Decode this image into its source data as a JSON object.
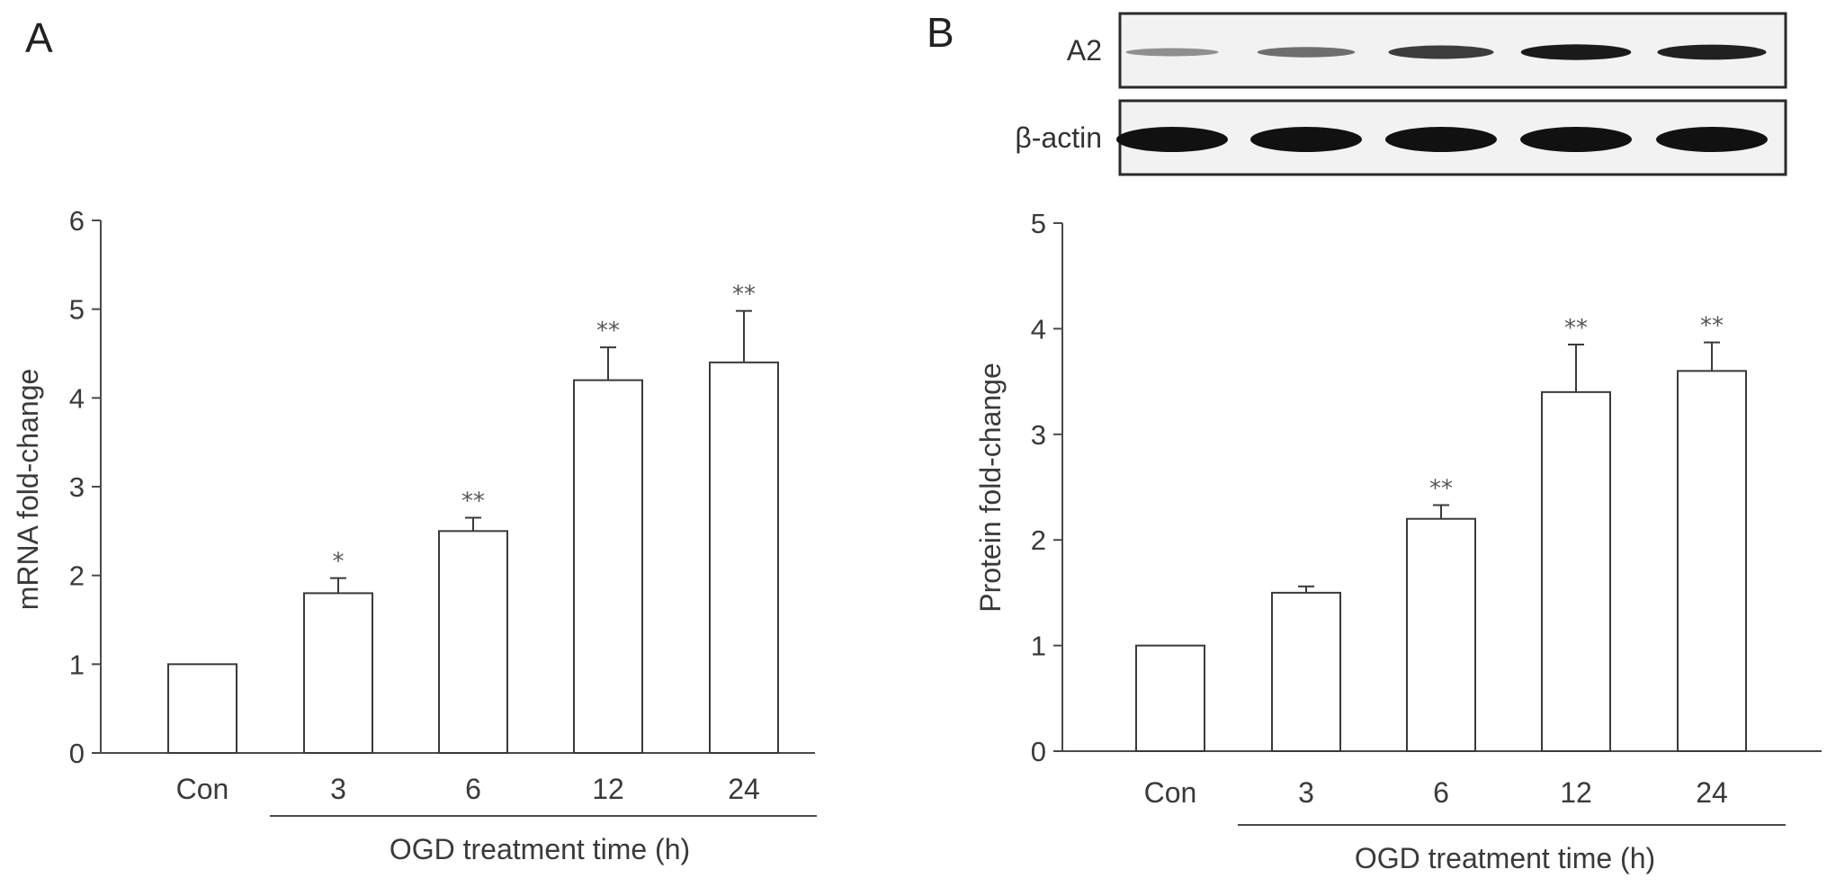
{
  "panels": {
    "a": {
      "label": "A"
    },
    "b": {
      "label": "B"
    }
  },
  "blot": {
    "rows": [
      {
        "label": "A2",
        "intensities": [
          0.25,
          0.45,
          0.75,
          0.95,
          0.9
        ]
      },
      {
        "label": "β-actin",
        "intensities": [
          1,
          1,
          1,
          1,
          1
        ]
      }
    ]
  },
  "colors": {
    "bar_fill": "#ffffff",
    "bar_stroke": "#3a3a3a",
    "axis": "#4a4a4a",
    "band": "#111111"
  },
  "chart_data": [
    {
      "type": "bar",
      "panel": "A",
      "categories": [
        "Con",
        "3",
        "6",
        "12",
        "24"
      ],
      "values": [
        1.0,
        1.8,
        2.5,
        4.2,
        4.4
      ],
      "errors": [
        0,
        0.17,
        0.15,
        0.37,
        0.58
      ],
      "significance": [
        "",
        "*",
        "**",
        "**",
        "**"
      ],
      "xlabel": "OGD treatment time (h)",
      "ylabel": "mRNA fold-change",
      "ylim": [
        0,
        6
      ],
      "yticks": [
        0,
        1,
        2,
        3,
        4,
        5,
        6
      ],
      "grid": false
    },
    {
      "type": "bar",
      "panel": "B",
      "categories": [
        "Con",
        "3",
        "6",
        "12",
        "24"
      ],
      "values": [
        1.0,
        1.5,
        2.2,
        3.4,
        3.6
      ],
      "errors": [
        0,
        0.06,
        0.13,
        0.45,
        0.27
      ],
      "significance": [
        "",
        "",
        "**",
        "**",
        "**"
      ],
      "xlabel": "OGD treatment time (h)",
      "ylabel": "Protein fold-change",
      "ylim": [
        0,
        5
      ],
      "yticks": [
        0,
        1,
        2,
        3,
        4,
        5
      ],
      "grid": false
    }
  ]
}
